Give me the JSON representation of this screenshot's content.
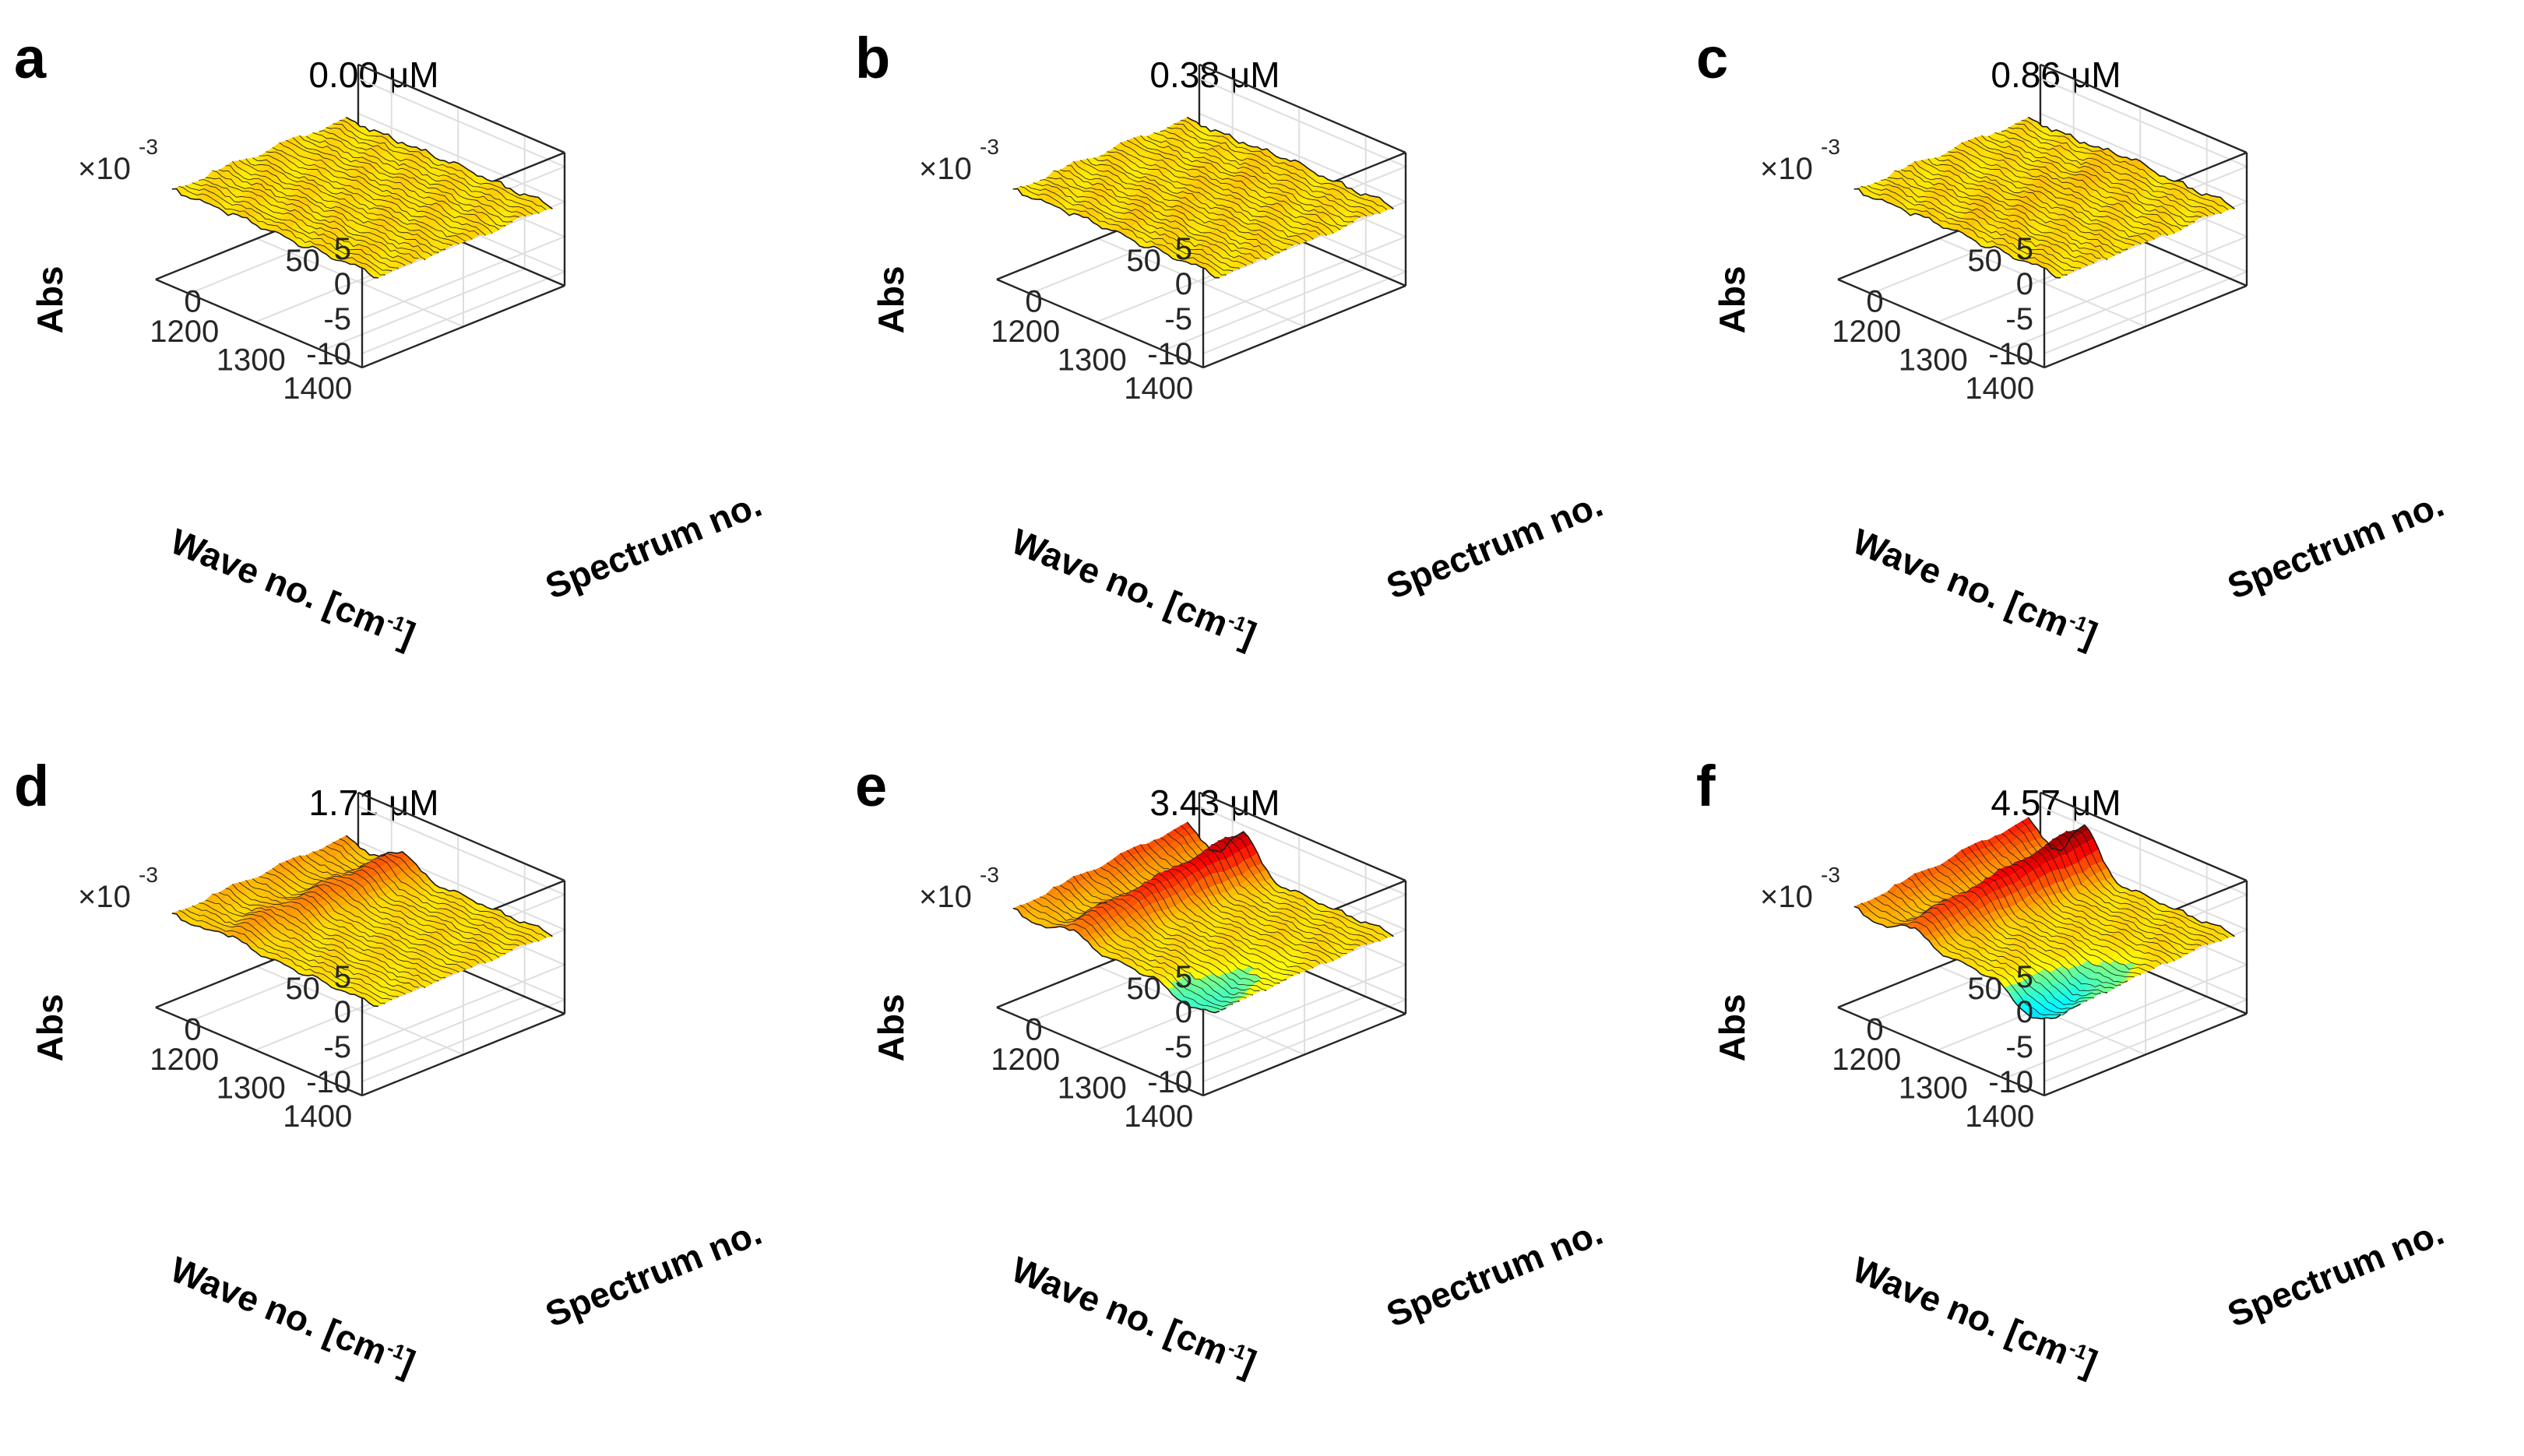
{
  "figure": {
    "multiplier_base": "×10",
    "multiplier_exp": "-3"
  },
  "chart_data": [
    {
      "type": "surface",
      "panel": "a",
      "title": "0.00 μM",
      "xlabel": "Wave no. [cm",
      "xlabel_sup": "-1",
      "xlabel_end": "]",
      "ylabel": "Spectrum no.",
      "zlabel": "Abs",
      "x_ticks": [
        "1400",
        "1300",
        "1200"
      ],
      "y_ticks": [
        "0",
        "50"
      ],
      "z_ticks": [
        "5",
        "0",
        "-5",
        "-10"
      ],
      "xlim": [
        1150,
        1460
      ],
      "ylim": [
        0,
        100
      ],
      "zlim": [
        -12,
        7
      ],
      "z_multiplier": "1e-3",
      "peak_abs": 0.0,
      "peak_wave": 1300,
      "dip_abs": 0.0,
      "dip_wave": 1420,
      "edge_rise_abs": 0.0,
      "noise_abs": 0.5
    },
    {
      "type": "surface",
      "panel": "b",
      "title": "0.38 μM",
      "xlabel": "Wave no. [cm",
      "xlabel_sup": "-1",
      "xlabel_end": "]",
      "ylabel": "Spectrum no.",
      "zlabel": "Abs",
      "x_ticks": [
        "1400",
        "1300",
        "1200"
      ],
      "y_ticks": [
        "0",
        "50"
      ],
      "z_ticks": [
        "5",
        "0",
        "-5",
        "-10"
      ],
      "xlim": [
        1150,
        1460
      ],
      "ylim": [
        0,
        100
      ],
      "zlim": [
        -12,
        7
      ],
      "z_multiplier": "1e-3",
      "peak_abs": 0.3,
      "peak_wave": 1300,
      "dip_abs": 0.0,
      "dip_wave": 1420,
      "edge_rise_abs": 0.0,
      "noise_abs": 0.5
    },
    {
      "type": "surface",
      "panel": "c",
      "title": "0.86 μM",
      "xlabel": "Wave no. [cm",
      "xlabel_sup": "-1",
      "xlabel_end": "]",
      "ylabel": "Spectrum no.",
      "zlabel": "Abs",
      "x_ticks": [
        "1400",
        "1300",
        "1200"
      ],
      "y_ticks": [
        "0",
        "50"
      ],
      "z_ticks": [
        "5",
        "0",
        "-5",
        "-10"
      ],
      "xlim": [
        1150,
        1460
      ],
      "ylim": [
        0,
        100
      ],
      "zlim": [
        -12,
        7
      ],
      "z_multiplier": "1e-3",
      "peak_abs": 0.5,
      "peak_wave": 1300,
      "dip_abs": 0.0,
      "dip_wave": 1420,
      "edge_rise_abs": 0.0,
      "noise_abs": 0.5
    },
    {
      "type": "surface",
      "panel": "d",
      "title": "1.71 μM",
      "xlabel": "Wave no. [cm",
      "xlabel_sup": "-1",
      "xlabel_end": "]",
      "ylabel": "Spectrum no.",
      "zlabel": "Abs",
      "x_ticks": [
        "1400",
        "1300",
        "1200"
      ],
      "y_ticks": [
        "0",
        "50"
      ],
      "z_ticks": [
        "5",
        "0",
        "-5",
        "-10"
      ],
      "xlim": [
        1150,
        1460
      ],
      "ylim": [
        0,
        100
      ],
      "zlim": [
        -12,
        7
      ],
      "z_multiplier": "1e-3",
      "peak_abs": 2.8,
      "peak_wave": 1235,
      "dip_abs": -0.3,
      "dip_wave": 1420,
      "edge_rise_abs": 1.5,
      "noise_abs": 0.4
    },
    {
      "type": "surface",
      "panel": "e",
      "title": "3.43 μM",
      "xlabel": "Wave no. [cm",
      "xlabel_sup": "-1",
      "xlabel_end": "]",
      "ylabel": "Spectrum no.",
      "zlabel": "Abs",
      "x_ticks": [
        "1400",
        "1300",
        "1200"
      ],
      "y_ticks": [
        "0",
        "50"
      ],
      "z_ticks": [
        "5",
        "0",
        "-5",
        "-10"
      ],
      "xlim": [
        1150,
        1460
      ],
      "ylim": [
        0,
        100
      ],
      "zlim": [
        -12,
        7
      ],
      "z_multiplier": "1e-3",
      "peak_abs": 5.8,
      "peak_wave": 1235,
      "dip_abs": -2.5,
      "dip_wave": 1420,
      "edge_rise_abs": 3.5,
      "noise_abs": 0.4
    },
    {
      "type": "surface",
      "panel": "f",
      "title": "4.57 μM",
      "xlabel": "Wave no. [cm",
      "xlabel_sup": "-1",
      "xlabel_end": "]",
      "ylabel": "Spectrum no.",
      "zlabel": "Abs",
      "x_ticks": [
        "1400",
        "1300",
        "1200"
      ],
      "y_ticks": [
        "0",
        "50"
      ],
      "z_ticks": [
        "5",
        "0",
        "-5",
        "-10"
      ],
      "xlim": [
        1150,
        1460
      ],
      "ylim": [
        0,
        100
      ],
      "zlim": [
        -12,
        7
      ],
      "z_multiplier": "1e-3",
      "peak_abs": 6.8,
      "peak_wave": 1235,
      "dip_abs": -4.2,
      "dip_wave": 1420,
      "edge_rise_abs": 4.2,
      "noise_abs": 0.4
    }
  ]
}
